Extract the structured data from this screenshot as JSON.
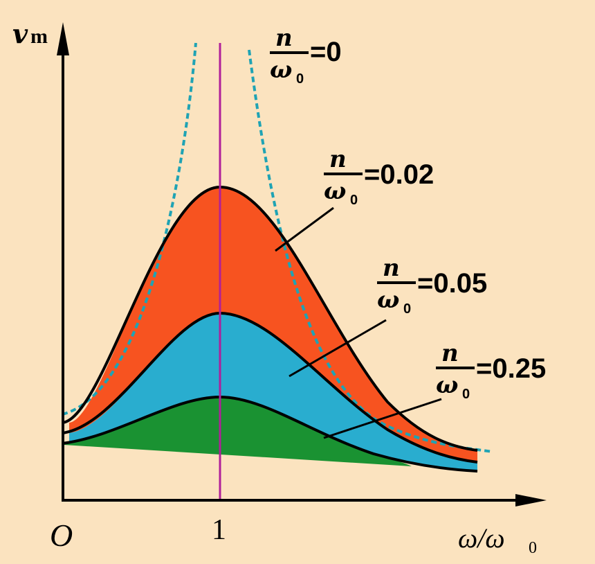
{
  "axes": {
    "y_label": "v",
    "y_label_sub": "m",
    "x_label": "ω/ω",
    "x_label_sub": "0",
    "origin_label": "O",
    "x_tick": "1"
  },
  "fraction": {
    "numerator": "n",
    "denominator": "ω",
    "denominator_sub": "0"
  },
  "curves": [
    {
      "id": "n0",
      "value_label": "=0",
      "style": "dashed",
      "color": "#1fa3b4"
    },
    {
      "id": "n002",
      "value_label": "=0.02",
      "fill": "#f75320"
    },
    {
      "id": "n005",
      "value_label": "=0.05",
      "fill": "#29adcf"
    },
    {
      "id": "n025",
      "value_label": "=0.25",
      "fill": "#1a9232"
    }
  ],
  "colors": {
    "background": "#fbe3bf",
    "resonance_line": "#b0209a",
    "curve": "#000000"
  }
}
